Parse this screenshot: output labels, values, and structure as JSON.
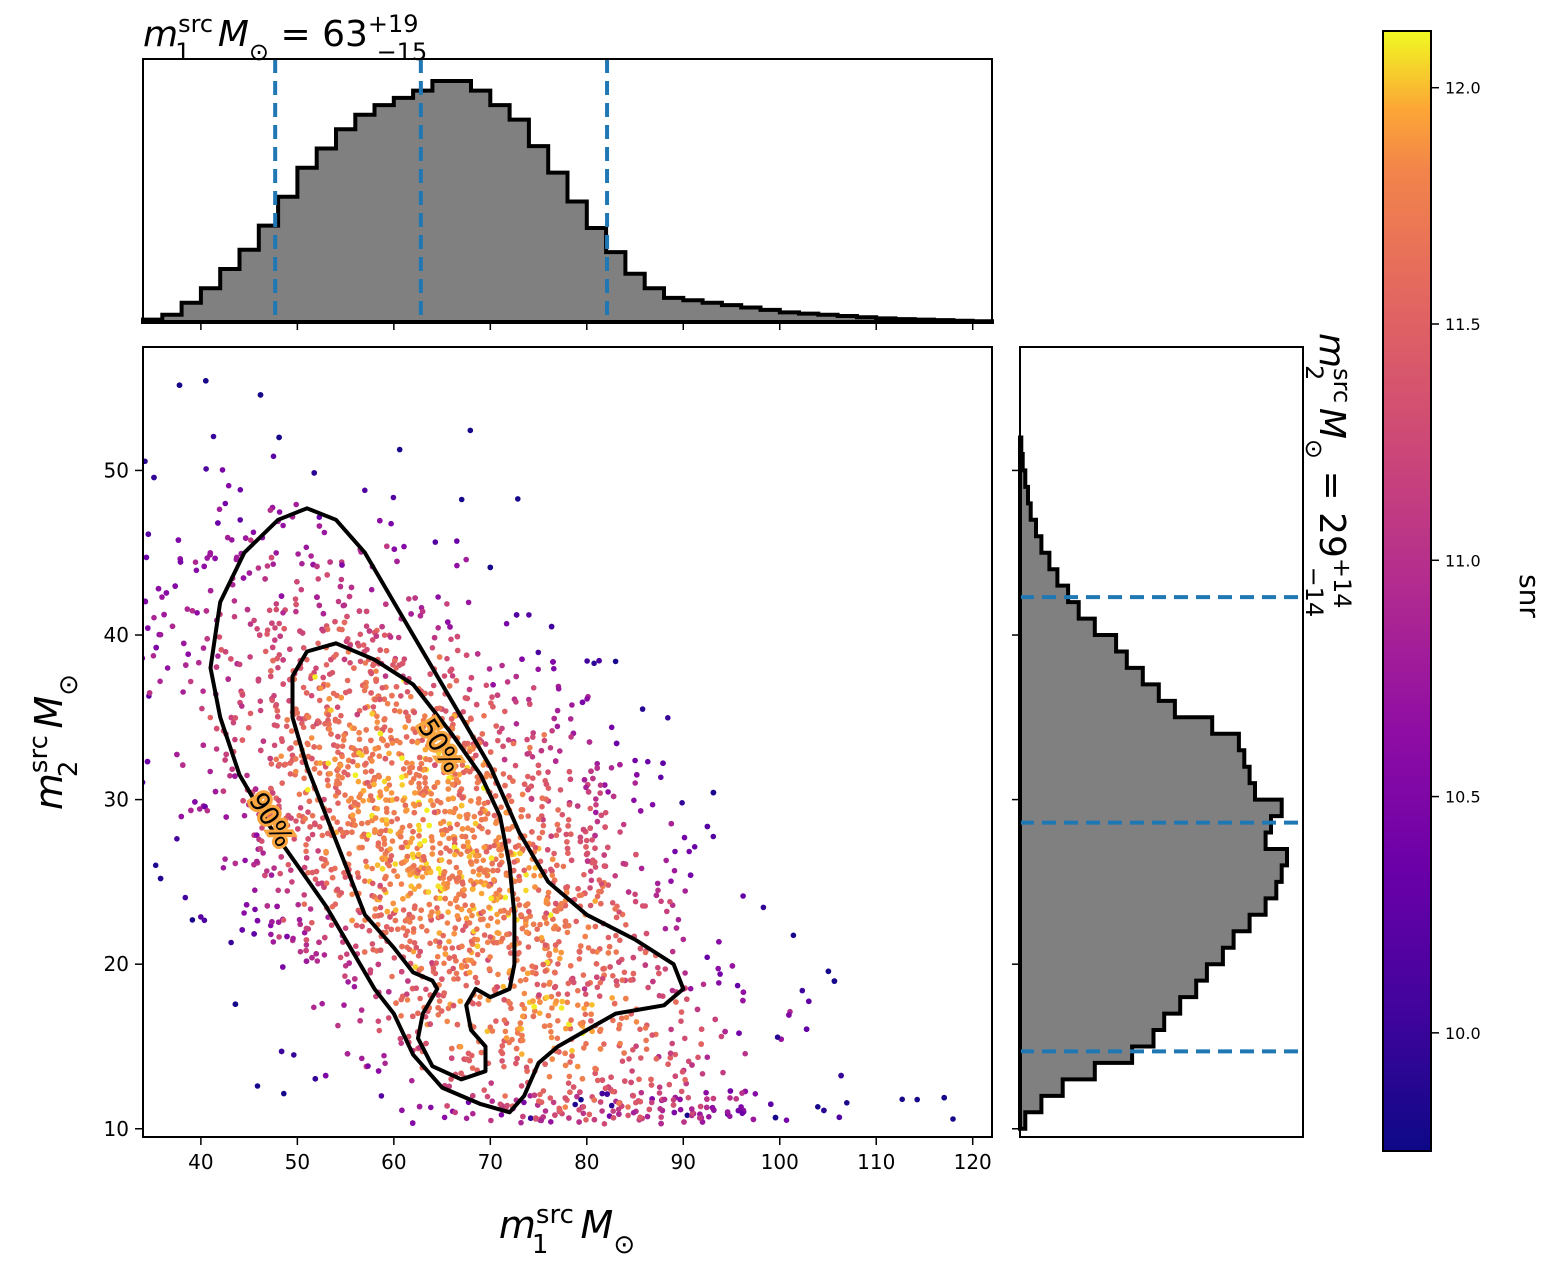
{
  "chart_data": [
    {
      "type": "scatter",
      "xlabel": {
        "base": "m",
        "sup": "src",
        "sub": "1",
        "unit": " M",
        "unit_sub": "⊙"
      },
      "ylabel": {
        "base": "m",
        "sup": "src",
        "sub": "2",
        "unit": " M",
        "unit_sub": "⊙"
      },
      "xlim": [
        34,
        122
      ],
      "ylim": [
        9.5,
        57.5
      ],
      "xticks": [
        40,
        50,
        60,
        70,
        80,
        90,
        100,
        110,
        120
      ],
      "yticks": [
        10,
        20,
        30,
        40,
        50
      ],
      "color_by": "snr",
      "cloud_center": [
        65,
        27
      ],
      "contours": [
        {
          "label": "50%",
          "label_at": [
            64,
            33
          ],
          "points": [
            [
              51,
              39
            ],
            [
              54,
              39.5
            ],
            [
              58,
              38.5
            ],
            [
              62,
              37
            ],
            [
              66,
              34
            ],
            [
              69,
              31.5
            ],
            [
              71,
              29
            ],
            [
              72,
              26
            ],
            [
              72.5,
              23
            ],
            [
              72.5,
              20
            ],
            [
              72,
              18.5
            ],
            [
              70,
              18
            ],
            [
              68.5,
              18.5
            ],
            [
              67.5,
              17.5
            ],
            [
              68,
              16
            ],
            [
              69.5,
              15
            ],
            [
              69.5,
              13.5
            ],
            [
              67,
              13
            ],
            [
              64,
              13.8
            ],
            [
              62.5,
              15.5
            ],
            [
              63,
              17
            ],
            [
              64.5,
              18.5
            ],
            [
              64,
              19
            ],
            [
              62,
              19.5
            ],
            [
              60,
              21
            ],
            [
              57,
              23
            ],
            [
              55,
              26
            ],
            [
              53,
              29
            ],
            [
              51,
              32
            ],
            [
              49.5,
              35
            ],
            [
              49.5,
              37.5
            ],
            [
              51,
              39
            ]
          ]
        },
        {
          "label": "90%",
          "label_at": [
            46.5,
            28.5
          ],
          "points": [
            [
              51,
              47.7
            ],
            [
              54,
              47
            ],
            [
              57,
              45
            ],
            [
              60,
              42
            ],
            [
              64,
              38
            ],
            [
              67,
              35
            ],
            [
              70,
              32
            ],
            [
              73,
              28
            ],
            [
              76,
              25
            ],
            [
              80,
              23
            ],
            [
              85,
              21.5
            ],
            [
              89,
              20
            ],
            [
              90,
              18.5
            ],
            [
              88,
              17.5
            ],
            [
              83,
              17
            ],
            [
              80,
              16
            ],
            [
              77,
              15
            ],
            [
              75,
              14
            ],
            [
              73.5,
              12
            ],
            [
              72,
              11
            ],
            [
              69,
              11.5
            ],
            [
              65,
              12.5
            ],
            [
              62,
              14.5
            ],
            [
              60,
              17
            ],
            [
              58,
              18.5
            ],
            [
              56,
              20.5
            ],
            [
              53,
              23.5
            ],
            [
              50,
              26
            ],
            [
              47,
              28.5
            ],
            [
              44,
              31.5
            ],
            [
              42,
              35
            ],
            [
              41,
              38
            ],
            [
              42,
              42
            ],
            [
              44.5,
              45
            ],
            [
              48,
              47
            ],
            [
              51,
              47.7
            ]
          ]
        }
      ]
    },
    {
      "type": "histogram",
      "title": {
        "base": "m",
        "sup": "src",
        "sub": "1",
        "unit": " M",
        "unit_sub": "⊙",
        "equals": " = ",
        "value": "63",
        "plus": "+19",
        "minus": "−15"
      },
      "bin_start": 34,
      "bin_width": 2,
      "counts": [
        0.01,
        0.03,
        0.08,
        0.14,
        0.22,
        0.3,
        0.4,
        0.52,
        0.64,
        0.72,
        0.8,
        0.86,
        0.9,
        0.93,
        0.96,
        1.0,
        1.0,
        0.96,
        0.9,
        0.84,
        0.73,
        0.62,
        0.5,
        0.39,
        0.29,
        0.2,
        0.14,
        0.1,
        0.09,
        0.08,
        0.07,
        0.06,
        0.05,
        0.04,
        0.035,
        0.03,
        0.025,
        0.02,
        0.015,
        0.012,
        0.01,
        0.008,
        0.005,
        0.003
      ],
      "quantiles": [
        47.7,
        62.8,
        82.1
      ]
    },
    {
      "type": "histogram",
      "orientation": "horizontal",
      "title": {
        "base": "m",
        "sup": "src",
        "sub": "2",
        "unit": " M",
        "unit_sub": "⊙",
        "equals": " = ",
        "value": "29",
        "plus": "+14",
        "minus": "−14"
      },
      "bin_start": 10,
      "bin_width": 1,
      "counts": [
        0.02,
        0.08,
        0.16,
        0.28,
        0.42,
        0.5,
        0.54,
        0.6,
        0.66,
        0.7,
        0.76,
        0.8,
        0.86,
        0.92,
        0.96,
        0.98,
        1.0,
        0.92,
        0.94,
        0.98,
        0.88,
        0.86,
        0.84,
        0.82,
        0.72,
        0.58,
        0.52,
        0.46,
        0.4,
        0.36,
        0.28,
        0.22,
        0.18,
        0.14,
        0.11,
        0.08,
        0.06,
        0.04,
        0.03,
        0.02,
        0.01,
        0.005
      ],
      "quantiles": [
        14.7,
        28.6,
        42.3
      ]
    },
    {
      "type": "colorbar",
      "label": "snr",
      "colormap": "plasma",
      "vmin": 9.75,
      "vmax": 12.12,
      "ticks": [
        10.0,
        10.5,
        11.0,
        11.5,
        12.0
      ]
    }
  ],
  "colors": {
    "hist_fill": "#808080",
    "hist_edge": "#000000",
    "quantile_line": "#1f77b4",
    "contour": "#000000"
  }
}
